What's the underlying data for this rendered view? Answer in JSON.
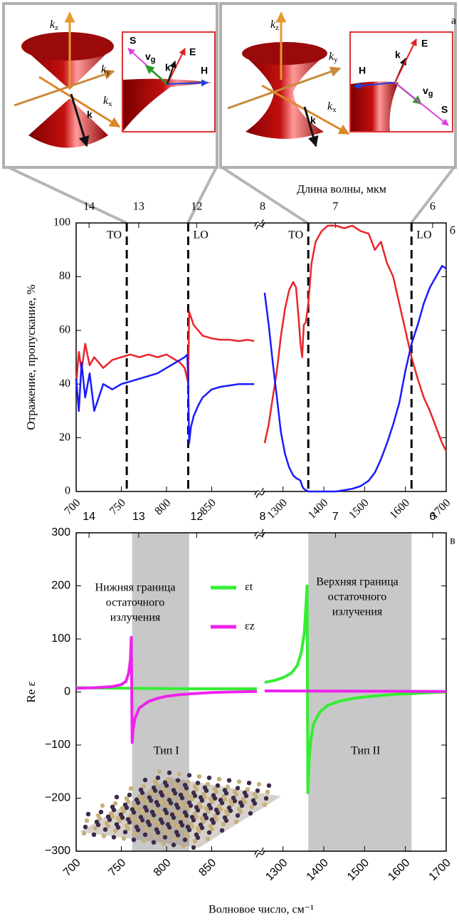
{
  "diagram": {
    "panel_label": "а",
    "left": {
      "kz": {
        "symbol": "k",
        "sub": "z"
      },
      "ky": {
        "symbol": "k",
        "sub": "y"
      },
      "kx": {
        "symbol": "k",
        "sub": "x"
      },
      "k": "k",
      "inset": {
        "S": "S",
        "vg": {
          "symbol": "v",
          "sub": "g"
        },
        "k": "k",
        "E": "E",
        "H": "H"
      }
    },
    "right": {
      "kz": {
        "symbol": "k",
        "sub": "z"
      },
      "ky": {
        "symbol": "k",
        "sub": "y"
      },
      "kx": {
        "symbol": "k",
        "sub": "x"
      },
      "k": "k",
      "inset": {
        "S": "S",
        "vg": {
          "symbol": "v",
          "sub": "g"
        },
        "k": "k",
        "E": "E",
        "H": "H"
      }
    }
  },
  "chart_data": [
    {
      "type": "line",
      "panel_label": "б",
      "ylabel": "Отражение, пропускание, %",
      "x2label": "Длина волны, мкм",
      "ylim": [
        0,
        100
      ],
      "yticks": [
        0,
        20,
        40,
        60,
        80,
        100
      ],
      "x_segments": [
        {
          "xlim": [
            700,
            900
          ],
          "xticks": [
            700,
            750,
            800,
            850
          ],
          "x2ticks": [
            14,
            13,
            12
          ]
        },
        {
          "xlim": [
            1250,
            1700
          ],
          "xticks": [
            1300,
            1400,
            1500,
            1600,
            1700
          ],
          "x2ticks": [
            8,
            7,
            6
          ]
        }
      ],
      "reference_lines": [
        {
          "x": 756,
          "label": "TO"
        },
        {
          "x": 824,
          "label": "LO"
        },
        {
          "x": 1362,
          "label": "TO"
        },
        {
          "x": 1615,
          "label": "LO"
        }
      ],
      "series": [
        {
          "color": "#e8262a",
          "x": [
            700,
            703,
            706,
            710,
            715,
            720,
            730,
            740,
            750,
            760,
            770,
            780,
            790,
            800,
            810,
            815,
            820,
            823,
            824,
            825,
            827,
            830,
            835,
            840,
            850,
            860,
            870,
            880,
            890,
            897
          ],
          "values": [
            40,
            52,
            45,
            55,
            47,
            50,
            46,
            49,
            50,
            51,
            50,
            51,
            50,
            51,
            49,
            48,
            46,
            42,
            40,
            67,
            65,
            62,
            60,
            58,
            57,
            56.5,
            56.5,
            56,
            56.5,
            56
          ]
        },
        {
          "color": "#1a1aff",
          "x": [
            700,
            703,
            706,
            710,
            715,
            720,
            730,
            740,
            750,
            760,
            770,
            780,
            790,
            800,
            810,
            815,
            820,
            823,
            824,
            825,
            827,
            830,
            835,
            840,
            850,
            860,
            870,
            880,
            890,
            897
          ],
          "values": [
            42,
            30,
            48,
            35,
            44,
            30,
            40,
            38,
            40,
            41,
            42,
            43,
            44,
            46,
            48,
            49,
            50,
            51,
            40,
            18,
            24,
            28,
            32,
            35,
            38,
            39,
            39.5,
            40,
            40,
            40
          ]
        },
        {
          "color": "#e8262a",
          "x": [
            1255,
            1265,
            1275,
            1285,
            1295,
            1305,
            1315,
            1325,
            1332,
            1338,
            1343,
            1347,
            1351,
            1356,
            1362,
            1370,
            1380,
            1395,
            1410,
            1430,
            1450,
            1470,
            1490,
            1510,
            1525,
            1540,
            1555,
            1570,
            1585,
            1600,
            1615,
            1630,
            1645,
            1660,
            1675,
            1690,
            1700
          ],
          "values": [
            18,
            25,
            35,
            45,
            58,
            68,
            75,
            78,
            76,
            65,
            55,
            50,
            62,
            63,
            70,
            85,
            93,
            97,
            99,
            99,
            98,
            99,
            97,
            96,
            90,
            93,
            85,
            80,
            70,
            60,
            50,
            42,
            35,
            30,
            24,
            18,
            15
          ]
        },
        {
          "color": "#1a1aff",
          "x": [
            1255,
            1265,
            1275,
            1285,
            1295,
            1305,
            1315,
            1325,
            1332,
            1338,
            1343,
            1347,
            1351,
            1356,
            1362,
            1370,
            1380,
            1395,
            1410,
            1430,
            1450,
            1470,
            1490,
            1510,
            1525,
            1540,
            1555,
            1570,
            1585,
            1600,
            1615,
            1630,
            1645,
            1660,
            1675,
            1690,
            1700
          ],
          "values": [
            74,
            62,
            48,
            35,
            22,
            14,
            9,
            6,
            5,
            4.5,
            4,
            2,
            1,
            0.5,
            0,
            0,
            0,
            0,
            0,
            0,
            0.5,
            1,
            2,
            4,
            7,
            12,
            18,
            25,
            33,
            45,
            55,
            62,
            70,
            76,
            80,
            84,
            83
          ]
        }
      ]
    },
    {
      "type": "line",
      "panel_label": "в",
      "ylabel": "Re ε",
      "xlabel": "Волновое число, см⁻¹",
      "ylim": [
        -300,
        300
      ],
      "yticks": [
        {
          "value": -300,
          "label": "−300"
        },
        {
          "value": -200,
          "label": "−200"
        },
        {
          "value": -100,
          "label": "−100"
        },
        0,
        100,
        200,
        300
      ],
      "x_segments": [
        {
          "xlim": [
            700,
            900
          ],
          "xticks": [
            700,
            750,
            800,
            850
          ],
          "x2ticks": [
            14,
            13,
            12
          ]
        },
        {
          "xlim": [
            1250,
            1700
          ],
          "xticks": [
            1300,
            1400,
            1500,
            1600,
            1700
          ],
          "x2ticks": [
            8,
            7,
            6
          ]
        }
      ],
      "bands": [
        {
          "xlim": [
            762,
            825
          ],
          "label": "Тип I"
        },
        {
          "xlim": [
            1362,
            1615
          ],
          "label": "Тип II"
        }
      ],
      "annotations": [
        {
          "lines": [
            "Нижняя граница",
            "остаточного",
            "излучения"
          ]
        },
        {
          "lines": [
            "Верхняя граница",
            "остаточного",
            "излучения"
          ]
        }
      ],
      "series": [
        {
          "name": "εt",
          "color": "#33ee33",
          "x": [
            700,
            760,
            830,
            900
          ],
          "values": [
            8,
            7,
            6,
            6
          ]
        },
        {
          "name": "εz",
          "color": "#ee22ee",
          "x": [
            700,
            720,
            740,
            750,
            755,
            758,
            760,
            761,
            762,
            763,
            765,
            770,
            780,
            790,
            800,
            815,
            830,
            850,
            870,
            900
          ],
          "values": [
            7,
            8,
            10,
            14,
            20,
            35,
            60,
            103,
            -95,
            -70,
            -50,
            -30,
            -18,
            -12,
            -8,
            -5,
            -3,
            -1,
            0,
            1
          ]
        },
        {
          "color": "#33ee33",
          "x": [
            1255,
            1280,
            1300,
            1320,
            1335,
            1345,
            1352,
            1356,
            1359,
            1361,
            1364,
            1368,
            1375,
            1390,
            1410,
            1440,
            1480,
            1530,
            1580,
            1620,
            1660,
            1700
          ],
          "values": [
            18,
            22,
            27,
            35,
            50,
            75,
            110,
            160,
            200,
            -190,
            -130,
            -90,
            -60,
            -38,
            -25,
            -17,
            -11,
            -7,
            -4,
            -3,
            -1,
            0
          ]
        },
        {
          "color": "#ee22ee",
          "x": [
            1255,
            1700
          ],
          "values": [
            2,
            1
          ]
        }
      ]
    }
  ]
}
